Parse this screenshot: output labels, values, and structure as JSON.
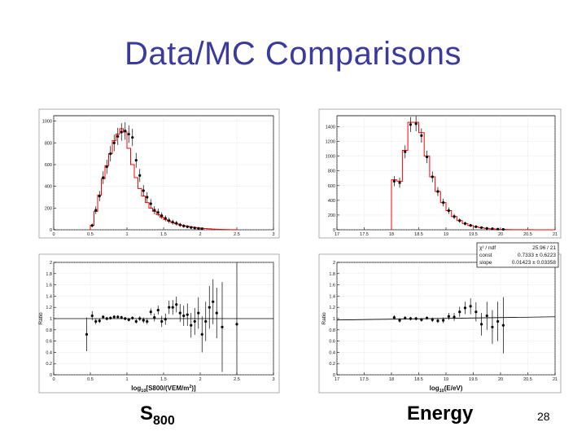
{
  "slide": {
    "title": "Data/MC Comparisons",
    "captions": {
      "s800_main": "S",
      "s800_sub": "800",
      "energy": "Energy"
    },
    "slide_number": "28"
  },
  "chart_data": [
    {
      "id": "s800_hist",
      "type": "bar",
      "xlim": [
        0,
        3
      ],
      "ylim": [
        0,
        1050
      ],
      "xticks": [
        "0",
        "0.5",
        "1",
        "1.5",
        "2",
        "2.5",
        "3"
      ],
      "yticks": [
        "0",
        "200",
        "400",
        "600",
        "800",
        "1000"
      ],
      "bin_width": 0.05,
      "bin_edges_start": 0.5,
      "mc_values": [
        40,
        170,
        320,
        470,
        590,
        700,
        820,
        880,
        930,
        900,
        750,
        600,
        480,
        380,
        310,
        250,
        200,
        170,
        140,
        115,
        95,
        80,
        65,
        55,
        45,
        38,
        32,
        26,
        21,
        17,
        14,
        11,
        9,
        7,
        5,
        4,
        3,
        2,
        1,
        1
      ],
      "data_points": [
        {
          "x": 0.525,
          "y": 40
        },
        {
          "x": 0.575,
          "y": 180
        },
        {
          "x": 0.625,
          "y": 310
        },
        {
          "x": 0.675,
          "y": 480
        },
        {
          "x": 0.725,
          "y": 580
        },
        {
          "x": 0.775,
          "y": 700
        },
        {
          "x": 0.825,
          "y": 800
        },
        {
          "x": 0.875,
          "y": 860
        },
        {
          "x": 0.925,
          "y": 900
        },
        {
          "x": 0.975,
          "y": 910
        },
        {
          "x": 1.025,
          "y": 880
        },
        {
          "x": 1.075,
          "y": 850
        },
        {
          "x": 1.125,
          "y": 640
        },
        {
          "x": 1.175,
          "y": 500
        },
        {
          "x": 1.225,
          "y": 360
        },
        {
          "x": 1.275,
          "y": 300
        },
        {
          "x": 1.325,
          "y": 240
        },
        {
          "x": 1.375,
          "y": 180
        },
        {
          "x": 1.425,
          "y": 160
        },
        {
          "x": 1.475,
          "y": 130
        },
        {
          "x": 1.525,
          "y": 105
        },
        {
          "x": 1.575,
          "y": 85
        },
        {
          "x": 1.625,
          "y": 70
        },
        {
          "x": 1.675,
          "y": 60
        },
        {
          "x": 1.725,
          "y": 45
        },
        {
          "x": 1.775,
          "y": 35
        },
        {
          "x": 1.825,
          "y": 28
        },
        {
          "x": 1.875,
          "y": 22
        },
        {
          "x": 1.925,
          "y": 17
        },
        {
          "x": 1.975,
          "y": 13
        },
        {
          "x": 2.025,
          "y": 10
        }
      ],
      "mc_color": "#ff0000"
    },
    {
      "id": "energy_hist",
      "type": "bar",
      "xlim": [
        17,
        21
      ],
      "ylim": [
        0,
        1550
      ],
      "xticks": [
        "17",
        "17.5",
        "18",
        "18.5",
        "19",
        "19.5",
        "20",
        "20.5",
        "21"
      ],
      "yticks": [
        "0",
        "200",
        "400",
        "600",
        "800",
        "1000",
        "1200",
        "1400"
      ],
      "bin_width": 0.1,
      "bin_edges_start": 18.0,
      "mc_values": [
        680,
        660,
        1080,
        1460,
        1460,
        1320,
        1000,
        720,
        520,
        370,
        260,
        180,
        125,
        85,
        58,
        40,
        27,
        18,
        12,
        8,
        5,
        3,
        2,
        1,
        1,
        1,
        0,
        0,
        0,
        0
      ],
      "data_points": [
        {
          "x": 18.05,
          "y": 660
        },
        {
          "x": 18.15,
          "y": 640
        },
        {
          "x": 18.25,
          "y": 1060
        },
        {
          "x": 18.35,
          "y": 1430
        },
        {
          "x": 18.45,
          "y": 1440
        },
        {
          "x": 18.55,
          "y": 1280
        },
        {
          "x": 18.65,
          "y": 990
        },
        {
          "x": 18.75,
          "y": 720
        },
        {
          "x": 18.85,
          "y": 520
        },
        {
          "x": 18.95,
          "y": 370
        },
        {
          "x": 19.05,
          "y": 260
        },
        {
          "x": 19.15,
          "y": 180
        },
        {
          "x": 19.25,
          "y": 125
        },
        {
          "x": 19.35,
          "y": 85
        },
        {
          "x": 19.45,
          "y": 60
        },
        {
          "x": 19.55,
          "y": 42
        },
        {
          "x": 19.65,
          "y": 30
        },
        {
          "x": 19.75,
          "y": 20
        },
        {
          "x": 19.85,
          "y": 14
        },
        {
          "x": 19.95,
          "y": 9
        },
        {
          "x": 20.05,
          "y": 6
        }
      ],
      "mc_color": "#ff0000"
    },
    {
      "id": "s800_ratio",
      "type": "scatter",
      "xlabel": "log10[S800/(VEM/m²)]",
      "xlabel_parts": {
        "pre": "log",
        "sub": "10",
        "post": "[S800/(VEM/m",
        "sup": "2",
        "end": ")]"
      },
      "ylabel": "Ratio",
      "xlim": [
        0,
        3
      ],
      "ylim": [
        0,
        2
      ],
      "xticks": [
        "0",
        "0.5",
        "1",
        "1.5",
        "2",
        "2.5",
        "3"
      ],
      "yticks": [
        "0",
        "0.2",
        "0.4",
        "0.6",
        "0.8",
        "1",
        "1.2",
        "1.4",
        "1.6",
        "1.8",
        "2"
      ],
      "reference_line": 1.0,
      "points": [
        {
          "x": 0.45,
          "y": 0.72,
          "err": 0.3
        },
        {
          "x": 0.525,
          "y": 1.05,
          "err": 0.08
        },
        {
          "x": 0.575,
          "y": 0.95,
          "err": 0.05
        },
        {
          "x": 0.625,
          "y": 0.96,
          "err": 0.04
        },
        {
          "x": 0.675,
          "y": 1.03,
          "err": 0.03
        },
        {
          "x": 0.725,
          "y": 1.0,
          "err": 0.03
        },
        {
          "x": 0.775,
          "y": 1.01,
          "err": 0.03
        },
        {
          "x": 0.825,
          "y": 1.03,
          "err": 0.03
        },
        {
          "x": 0.875,
          "y": 1.03,
          "err": 0.03
        },
        {
          "x": 0.925,
          "y": 1.02,
          "err": 0.03
        },
        {
          "x": 0.975,
          "y": 1.0,
          "err": 0.03
        },
        {
          "x": 1.025,
          "y": 0.98,
          "err": 0.03
        },
        {
          "x": 1.075,
          "y": 1.01,
          "err": 0.03
        },
        {
          "x": 1.125,
          "y": 0.95,
          "err": 0.04
        },
        {
          "x": 1.175,
          "y": 1.0,
          "err": 0.04
        },
        {
          "x": 1.225,
          "y": 0.97,
          "err": 0.05
        },
        {
          "x": 1.275,
          "y": 0.95,
          "err": 0.05
        },
        {
          "x": 1.325,
          "y": 1.12,
          "err": 0.06
        },
        {
          "x": 1.375,
          "y": 1.02,
          "err": 0.07
        },
        {
          "x": 1.425,
          "y": 1.15,
          "err": 0.08
        },
        {
          "x": 1.475,
          "y": 0.95,
          "err": 0.1
        },
        {
          "x": 1.525,
          "y": 0.99,
          "err": 0.1
        },
        {
          "x": 1.575,
          "y": 1.2,
          "err": 0.12
        },
        {
          "x": 1.625,
          "y": 1.2,
          "err": 0.13
        },
        {
          "x": 1.675,
          "y": 1.25,
          "err": 0.14
        },
        {
          "x": 1.725,
          "y": 1.1,
          "err": 0.16
        },
        {
          "x": 1.775,
          "y": 1.05,
          "err": 0.18
        },
        {
          "x": 1.825,
          "y": 1.07,
          "err": 0.2
        },
        {
          "x": 1.875,
          "y": 0.88,
          "err": 0.22
        },
        {
          "x": 1.925,
          "y": 0.95,
          "err": 0.24
        },
        {
          "x": 1.975,
          "y": 1.1,
          "err": 0.28
        },
        {
          "x": 2.025,
          "y": 0.72,
          "err": 0.32
        },
        {
          "x": 2.075,
          "y": 0.95,
          "err": 0.35
        },
        {
          "x": 2.125,
          "y": 1.2,
          "err": 0.38
        },
        {
          "x": 2.175,
          "y": 1.3,
          "err": 0.4
        },
        {
          "x": 2.225,
          "y": 1.1,
          "err": 0.45
        },
        {
          "x": 2.3,
          "y": 0.85,
          "err": 0.8
        },
        {
          "x": 2.5,
          "y": 0.9,
          "err": 1.2
        }
      ]
    },
    {
      "id": "energy_ratio",
      "type": "scatter",
      "xlabel": "log10(E/eV)",
      "xlabel_parts": {
        "pre": "log",
        "sub": "10",
        "post": "(E/eV)"
      },
      "ylabel": "Ratio",
      "xlim": [
        17,
        21
      ],
      "ylim": [
        0,
        2
      ],
      "xticks": [
        "17",
        "17.5",
        "18",
        "18.5",
        "19",
        "19.5",
        "20",
        "20.5",
        "21"
      ],
      "yticks": [
        "0",
        "0.2",
        "0.4",
        "0.6",
        "0.8",
        "1",
        "1.2",
        "1.4",
        "1.6",
        "1.8",
        "2"
      ],
      "fit_line": {
        "const": 0.7333,
        "slope": 0.01423
      },
      "stats": [
        {
          "label": "χ² / ndf",
          "value": "25.96 / 21"
        },
        {
          "label": "const",
          "value": "0.7333 ± 0.6223"
        },
        {
          "label": "slope",
          "value": "0.01423 ± 0.03358"
        }
      ],
      "points": [
        {
          "x": 18.05,
          "y": 1.02,
          "err": 0.04
        },
        {
          "x": 18.15,
          "y": 0.97,
          "err": 0.04
        },
        {
          "x": 18.25,
          "y": 1.01,
          "err": 0.03
        },
        {
          "x": 18.35,
          "y": 1.0,
          "err": 0.03
        },
        {
          "x": 18.45,
          "y": 1.0,
          "err": 0.03
        },
        {
          "x": 18.55,
          "y": 0.98,
          "err": 0.03
        },
        {
          "x": 18.65,
          "y": 1.01,
          "err": 0.03
        },
        {
          "x": 18.75,
          "y": 0.98,
          "err": 0.04
        },
        {
          "x": 18.85,
          "y": 0.96,
          "err": 0.04
        },
        {
          "x": 18.95,
          "y": 0.97,
          "err": 0.05
        },
        {
          "x": 19.05,
          "y": 1.04,
          "err": 0.06
        },
        {
          "x": 19.15,
          "y": 1.03,
          "err": 0.07
        },
        {
          "x": 19.25,
          "y": 1.12,
          "err": 0.09
        },
        {
          "x": 19.35,
          "y": 1.19,
          "err": 0.11
        },
        {
          "x": 19.45,
          "y": 1.22,
          "err": 0.14
        },
        {
          "x": 19.55,
          "y": 1.12,
          "err": 0.17
        },
        {
          "x": 19.65,
          "y": 0.9,
          "err": 0.2
        },
        {
          "x": 19.75,
          "y": 1.05,
          "err": 0.25
        },
        {
          "x": 19.85,
          "y": 0.85,
          "err": 0.3
        },
        {
          "x": 19.95,
          "y": 0.95,
          "err": 0.35
        },
        {
          "x": 20.05,
          "y": 0.88,
          "err": 0.5
        }
      ]
    }
  ]
}
